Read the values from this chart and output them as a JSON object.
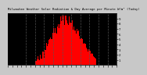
{
  "title": "Milwaukee Weather Solar Radiation & Day Average per Minute W/m² (Today)",
  "bg_color": "#c8c8c8",
  "plot_bg_color": "#000000",
  "grid_color": "#555555",
  "bar_color": "#ff0000",
  "current_bar_color": "#0000ff",
  "num_minutes": 1440,
  "sunrise": 360,
  "sunset": 1170,
  "peak_minute": 740,
  "peak_value": 950,
  "current_minute": 1148,
  "current_value": 35,
  "grid_minutes": [
    240,
    360,
    480,
    600,
    720,
    840,
    960,
    1080,
    1200,
    1320
  ],
  "ytick_positions": [
    100,
    200,
    300,
    400,
    500,
    600,
    700,
    800,
    900
  ],
  "ytick_labels": [
    "1",
    "2",
    "3",
    "4",
    "5",
    "6",
    "7",
    "8",
    "9"
  ],
  "seed": 77
}
